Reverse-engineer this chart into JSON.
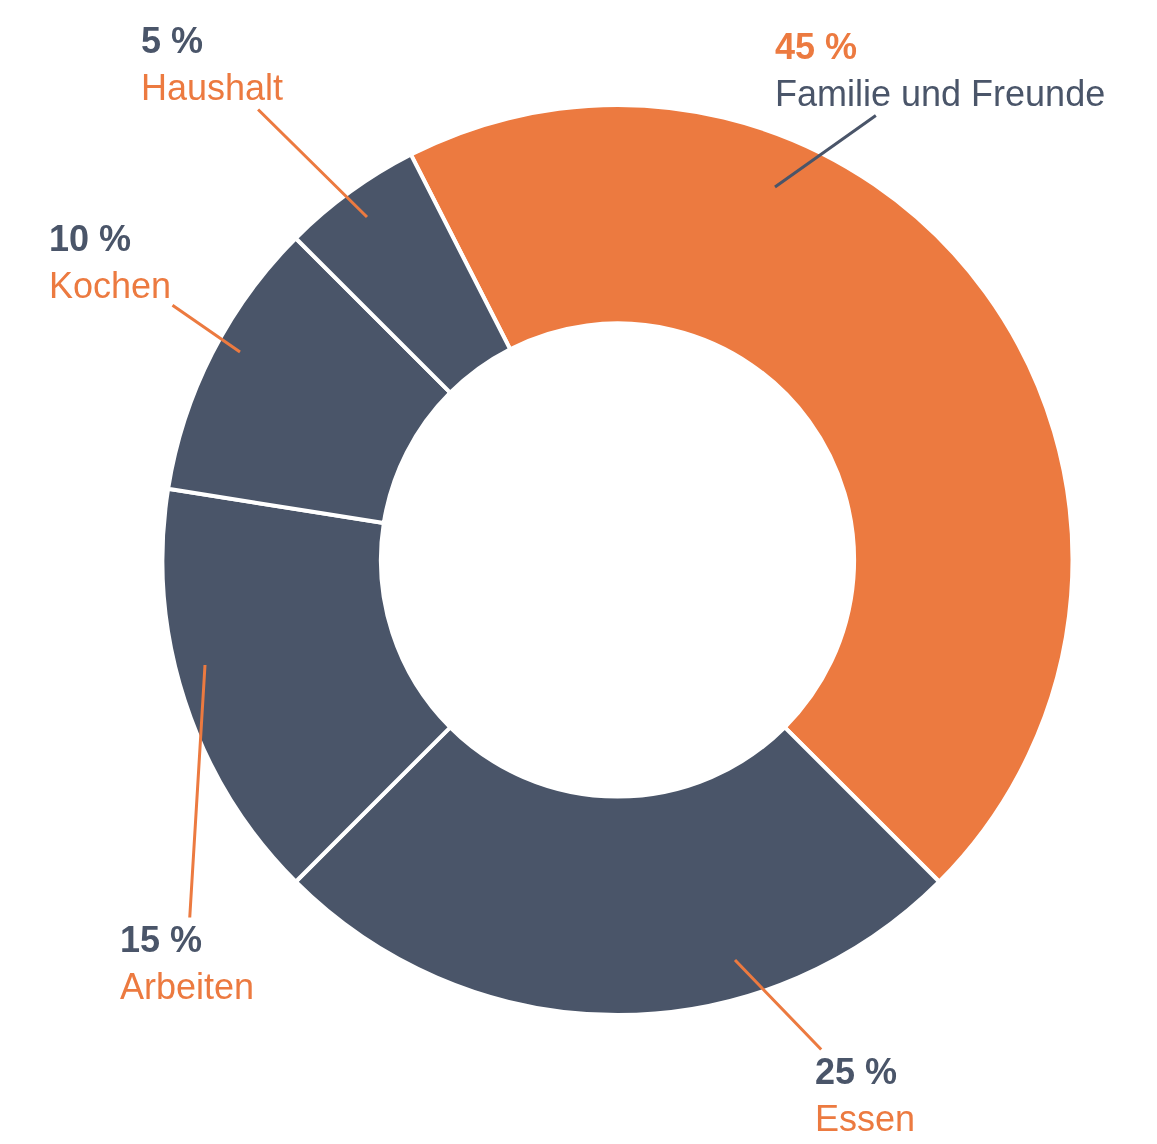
{
  "chart_data": {
    "type": "donut",
    "categories": [
      "Familie und Freunde",
      "Essen",
      "Arbeiten",
      "Kochen",
      "Haushalt"
    ],
    "values": [
      45,
      25,
      15,
      10,
      5
    ],
    "value_labels": [
      "45 %",
      "25 %",
      "15 %",
      "10 %",
      "5 %"
    ],
    "colors": [
      "#ec7a40",
      "#4a5569",
      "#4a5569",
      "#4a5569",
      "#4a5569"
    ],
    "legend": false
  }
}
